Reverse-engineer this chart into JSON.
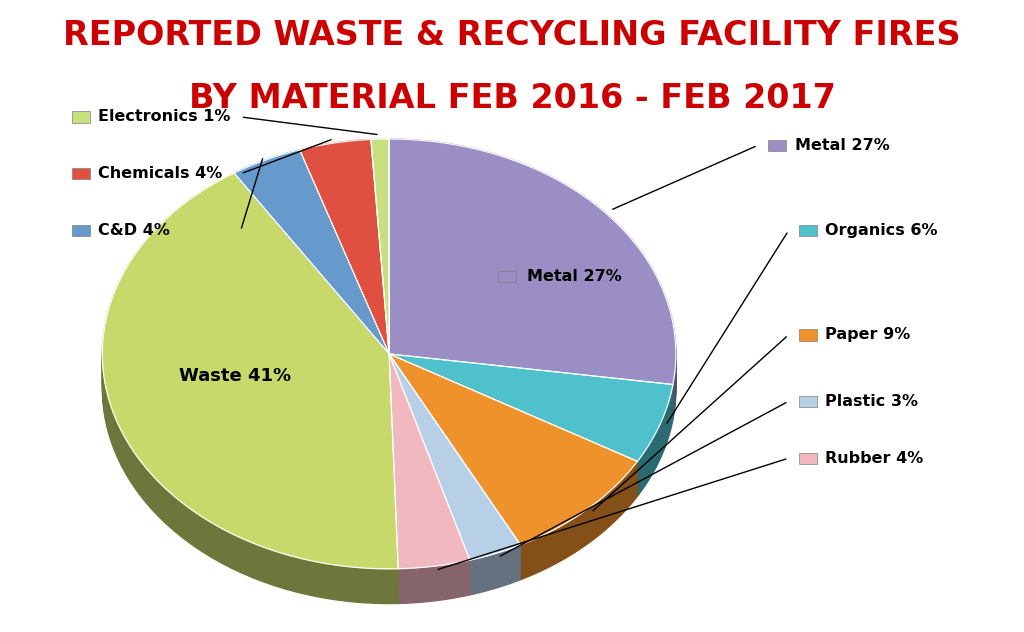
{
  "title_line1": "REPORTED WASTE & RECYCLING FACILITY FIRES",
  "title_line2": "BY MATERIAL FEB 2016 - FEB 2017",
  "title_color": "#cc0000",
  "title_fontsize": 24,
  "background_color": "#ffffff",
  "slices": [
    {
      "label": "Metal 27%",
      "value": 27,
      "color": "#9b8ec4"
    },
    {
      "label": "Organics 6%",
      "value": 6,
      "color": "#4ec1cc"
    },
    {
      "label": "Paper 9%",
      "value": 9,
      "color": "#f0922b"
    },
    {
      "label": "Plastic 3%",
      "value": 3,
      "color": "#b8cfe8"
    },
    {
      "label": "Rubber 4%",
      "value": 4,
      "color": "#f2b8c0"
    },
    {
      "label": "Waste 41%",
      "value": 41,
      "color": "#c8d96c"
    },
    {
      "label": "C&D 4%",
      "value": 4,
      "color": "#6699cc"
    },
    {
      "label": "Chemicals 4%",
      "value": 4,
      "color": "#e05040"
    },
    {
      "label": "Electronics 1%",
      "value": 1,
      "color": "#c8e080"
    }
  ]
}
